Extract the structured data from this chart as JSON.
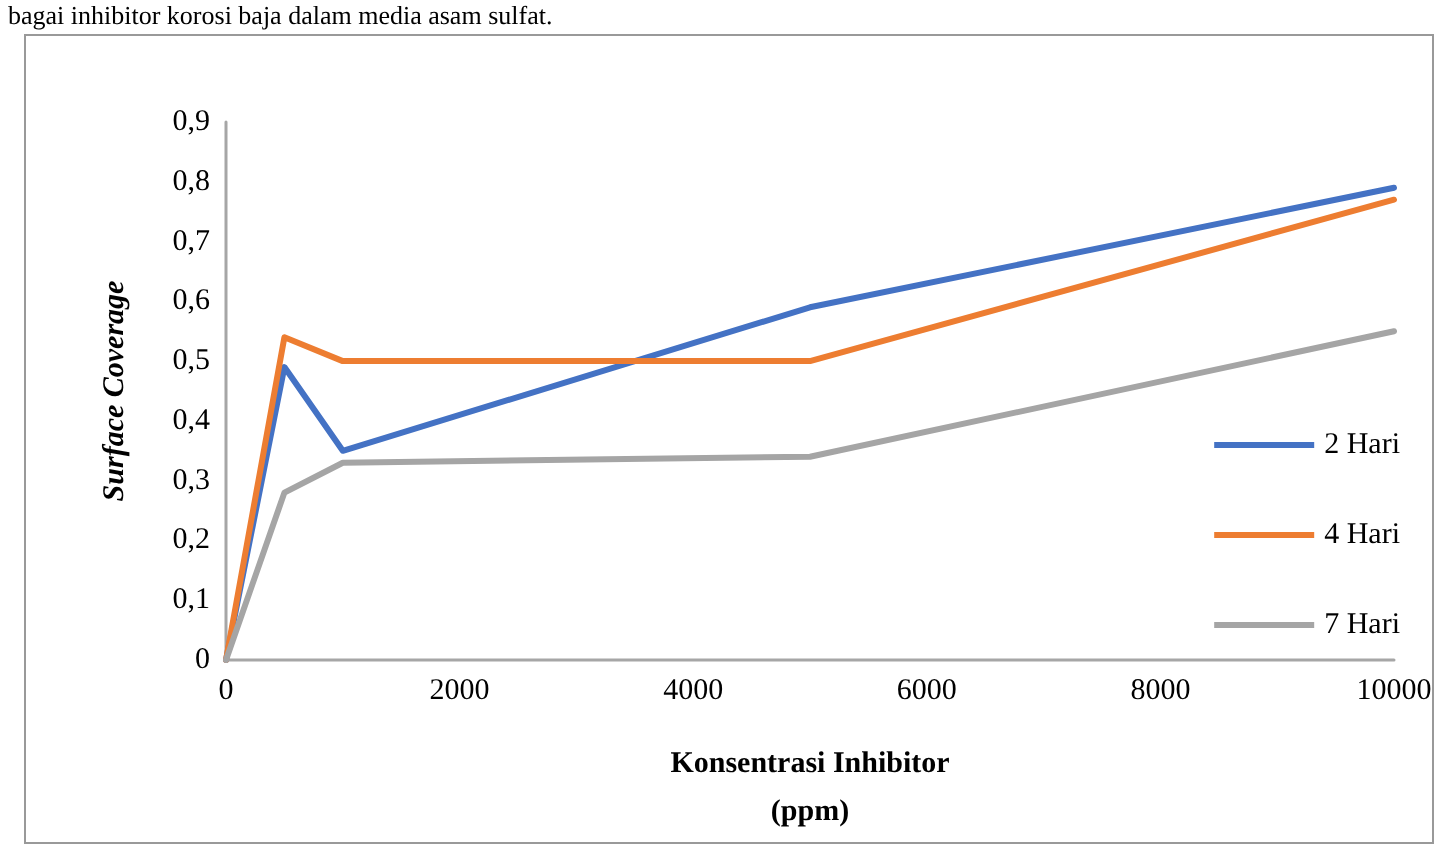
{
  "chart_data": {
    "type": "line",
    "xlabel": "Konsentrasi Inhibitor\n(ppm)",
    "ylabel": "Surface Coverage",
    "annotations": [
      "bagai inhibitor korosi baja dalam media asam sulfat."
    ],
    "x": [
      0,
      500,
      1000,
      5000,
      10000
    ],
    "series": [
      {
        "name": "2 Hari",
        "color": "#4472c4",
        "values": [
          0,
          0.49,
          0.35,
          0.59,
          0.79
        ]
      },
      {
        "name": "4 Hari",
        "color": "#ed7d31",
        "values": [
          0,
          0.54,
          0.5,
          0.5,
          0.77
        ]
      },
      {
        "name": "7 Hari",
        "color": "#a5a5a5",
        "values": [
          0,
          0.28,
          0.33,
          0.34,
          0.55
        ]
      }
    ],
    "xlim": [
      0,
      10000
    ],
    "xticks": [
      0,
      2000,
      4000,
      6000,
      8000,
      10000
    ],
    "ylim": [
      0,
      0.9
    ],
    "yticks": [
      {
        "value": 0,
        "label": "0"
      },
      {
        "value": 0.1,
        "label": "0,1"
      },
      {
        "value": 0.2,
        "label": "0,2"
      },
      {
        "value": 0.3,
        "label": "0,3"
      },
      {
        "value": 0.4,
        "label": "0,4"
      },
      {
        "value": 0.5,
        "label": "0,5"
      },
      {
        "value": 0.6,
        "label": "0,6"
      },
      {
        "value": 0.7,
        "label": "0,7"
      },
      {
        "value": 0.8,
        "label": "0,8"
      },
      {
        "value": 0.9,
        "label": "0,9"
      }
    ],
    "grid": false,
    "legend": "right",
    "marker": "none",
    "line_style": "solid"
  }
}
